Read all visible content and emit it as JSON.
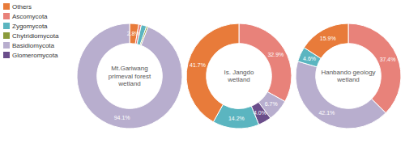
{
  "chart_data": [
    {
      "type": "pie",
      "title": "Mt.Gariwang\nprimeval forest\nwetland",
      "categories": [
        "Others",
        "Ascomycota",
        "Zygomycota",
        "Chytridiomycota",
        "Basidiomycota"
      ],
      "values": [
        2.8,
        0.8,
        1.6,
        0.5,
        94.1
      ],
      "value_labels": [
        "2.8%",
        null,
        null,
        null,
        "94.1%"
      ],
      "colors": [
        "#E87B3A",
        "#E8827A",
        "#5BB5C0",
        "#8B9B3C",
        "#B8AECE"
      ],
      "data_labels": true,
      "legend": "left"
    },
    {
      "type": "pie",
      "title": "Is. Jangdo\nwetland",
      "categories": [
        "Ascomycota",
        "Basidiomycota",
        "Glomeromycota",
        "Zygomycota",
        "Others"
      ],
      "values": [
        32.9,
        6.7,
        4.0,
        14.2,
        41.7
      ],
      "value_labels": [
        "32.9%",
        "6.7%",
        "4.0%",
        "14.2%",
        "41.7%"
      ],
      "colors": [
        "#E8827A",
        "#B8AECE",
        "#6B4E8B",
        "#5BB5C0",
        "#E87B3A"
      ],
      "data_labels": true
    },
    {
      "type": "pie",
      "title": "Hanbando geology\nwetland",
      "categories": [
        "Ascomycota",
        "Basidiomycota",
        "Zygomycota",
        "Others"
      ],
      "values": [
        37.4,
        42.1,
        4.6,
        15.9
      ],
      "value_labels": [
        "37.4%",
        "42.1%",
        "4.6%",
        "15.9%"
      ],
      "colors": [
        "#E8827A",
        "#B8AECE",
        "#5BB5C0",
        "#E87B3A"
      ],
      "data_labels": true
    }
  ]
}
